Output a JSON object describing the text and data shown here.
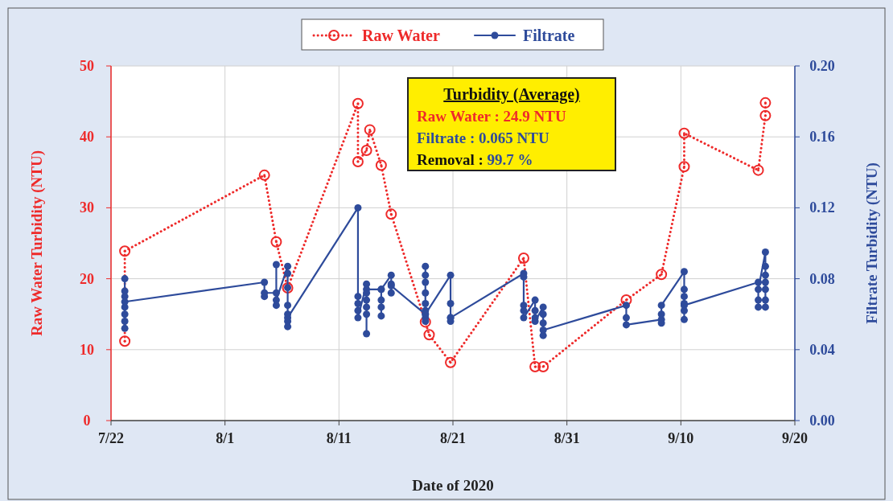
{
  "chart_data": {
    "type": "line",
    "xlabel": "Date of 2020",
    "ylabel": "Raw Water Turbidity (NTU)",
    "y2label": "Filtrate Turbidity (NTU)",
    "xlim": [
      "2020-07-22",
      "2020-09-20"
    ],
    "xticks": [
      {
        "value": "2020-07-22",
        "label": "7/22"
      },
      {
        "value": "2020-08-01",
        "label": "8/1"
      },
      {
        "value": "2020-08-11",
        "label": "8/11"
      },
      {
        "value": "2020-08-21",
        "label": "8/21"
      },
      {
        "value": "2020-08-31",
        "label": "8/31"
      },
      {
        "value": "2020-09-10",
        "label": "9/10"
      },
      {
        "value": "2020-09-20",
        "label": "9/20"
      }
    ],
    "ylim": [
      0,
      50
    ],
    "yticks": [
      0,
      10,
      20,
      30,
      40,
      50
    ],
    "y2lim": [
      0,
      0.2
    ],
    "y2ticks": [
      {
        "value": 0,
        "label": "0.00"
      },
      {
        "value": 0.04,
        "label": "0.04"
      },
      {
        "value": 0.08,
        "label": "0.08"
      },
      {
        "value": 0.12,
        "label": "0.12"
      },
      {
        "value": 0.16,
        "label": "0.16"
      },
      {
        "value": 0.2,
        "label": "0.20"
      }
    ],
    "grid": true,
    "legend": "top",
    "annotations": [
      "Turbidity (Average)",
      "Raw Water : 24.9 NTU",
      "Filtrate : 0.065 NTU",
      "Removal : 99.7 %"
    ],
    "series": [
      {
        "name": "Raw Water",
        "color": "#ee2a2a",
        "marker": "circle",
        "line_style": "dotted",
        "x": [
          "2020-07-23T05:00",
          "2020-07-23T05:00",
          "2020-08-04T11:00",
          "2020-08-05T12:00",
          "2020-08-06T12:00",
          "2020-08-12T16:00",
          "2020-08-12T16:00",
          "2020-08-13T10:00",
          "2020-08-13T17:00",
          "2020-08-14T17:00",
          "2020-08-15T14:00",
          "2020-08-18T14:00",
          "2020-08-18T22:00",
          "2020-08-20T19:00",
          "2020-08-27T05:00",
          "2020-08-28T05:00",
          "2020-08-28T22:00",
          "2020-09-05T05:00",
          "2020-09-08T07:00",
          "2020-09-10T07:00",
          "2020-09-10T07:00",
          "2020-09-16T19:00",
          "2020-09-17T10:00",
          "2020-09-17T10:00"
        ],
        "values": [
          11.2,
          23.9,
          34.6,
          25.2,
          18.7,
          44.7,
          36.5,
          38.1,
          41.0,
          36.0,
          29.1,
          13.9,
          12.1,
          8.2,
          22.9,
          7.6,
          7.6,
          17.0,
          20.6,
          35.8,
          40.5,
          35.3,
          43.0,
          44.8
        ]
      },
      {
        "name": "Filtrate",
        "color": "#2e4b9b",
        "marker": "circle",
        "line_style": "solid",
        "axis": "y2",
        "x": [
          "2020-07-23T05:00",
          "2020-07-23T05:00",
          "2020-07-23T05:00",
          "2020-07-23T05:00",
          "2020-07-23T05:00",
          "2020-07-23T05:00",
          "2020-07-23T05:00",
          "2020-07-23T05:00",
          "2020-08-04T11:00",
          "2020-08-04T11:00",
          "2020-08-04T11:00",
          "2020-08-05T12:00",
          "2020-08-05T12:00",
          "2020-08-05T12:00",
          "2020-08-05T12:00",
          "2020-08-06T12:00",
          "2020-08-06T12:00",
          "2020-08-06T12:00",
          "2020-08-06T12:00",
          "2020-08-06T12:00",
          "2020-08-06T12:00",
          "2020-08-06T12:00",
          "2020-08-06T12:00",
          "2020-08-12T16:00",
          "2020-08-12T16:00",
          "2020-08-12T16:00",
          "2020-08-12T16:00",
          "2020-08-12T16:00",
          "2020-08-13T10:00",
          "2020-08-13T10:00",
          "2020-08-13T10:00",
          "2020-08-13T10:00",
          "2020-08-13T10:00",
          "2020-08-13T10:00",
          "2020-08-13T10:00",
          "2020-08-14T17:00",
          "2020-08-14T17:00",
          "2020-08-14T17:00",
          "2020-08-14T17:00",
          "2020-08-14T17:00",
          "2020-08-15T14:00",
          "2020-08-15T14:00",
          "2020-08-15T14:00",
          "2020-08-15T14:00",
          "2020-08-18T14:00",
          "2020-08-18T14:00",
          "2020-08-18T14:00",
          "2020-08-18T14:00",
          "2020-08-18T14:00",
          "2020-08-18T14:00",
          "2020-08-18T14:00",
          "2020-08-18T14:00",
          "2020-08-18T14:00",
          "2020-08-18T14:00",
          "2020-08-20T19:00",
          "2020-08-20T19:00",
          "2020-08-20T19:00",
          "2020-08-20T19:00",
          "2020-08-20T19:00",
          "2020-08-27T05:00",
          "2020-08-27T05:00",
          "2020-08-27T05:00",
          "2020-08-27T05:00",
          "2020-08-27T05:00",
          "2020-08-28T05:00",
          "2020-08-28T05:00",
          "2020-08-28T05:00",
          "2020-08-28T05:00",
          "2020-08-28T22:00",
          "2020-08-28T22:00",
          "2020-08-28T22:00",
          "2020-08-28T22:00",
          "2020-08-28T22:00",
          "2020-09-05T05:00",
          "2020-09-05T05:00",
          "2020-09-05T05:00",
          "2020-09-08T07:00",
          "2020-09-08T07:00",
          "2020-09-08T07:00",
          "2020-09-08T07:00",
          "2020-09-10T07:00",
          "2020-09-10T07:00",
          "2020-09-10T07:00",
          "2020-09-10T07:00",
          "2020-09-10T07:00",
          "2020-09-10T07:00",
          "2020-09-10T07:00",
          "2020-09-16T19:00",
          "2020-09-16T19:00",
          "2020-09-16T19:00",
          "2020-09-16T19:00",
          "2020-09-17T10:00",
          "2020-09-17T10:00",
          "2020-09-17T10:00",
          "2020-09-17T10:00",
          "2020-09-17T10:00",
          "2020-09-17T10:00",
          "2020-09-17T10:00"
        ],
        "values": [
          0.08,
          0.073,
          0.07,
          0.064,
          0.06,
          0.056,
          0.052,
          0.067,
          0.078,
          0.07,
          0.072,
          0.072,
          0.088,
          0.065,
          0.068,
          0.087,
          0.083,
          0.075,
          0.065,
          0.06,
          0.056,
          0.053,
          0.058,
          0.12,
          0.07,
          0.066,
          0.062,
          0.058,
          0.077,
          0.072,
          0.068,
          0.064,
          0.06,
          0.049,
          0.074,
          0.074,
          0.068,
          0.064,
          0.059,
          0.074,
          0.082,
          0.077,
          0.072,
          0.076,
          0.06,
          0.087,
          0.082,
          0.078,
          0.072,
          0.066,
          0.062,
          0.058,
          0.056,
          0.06,
          0.082,
          0.066,
          0.058,
          0.056,
          0.058,
          0.083,
          0.081,
          0.065,
          0.062,
          0.058,
          0.068,
          0.062,
          0.058,
          0.056,
          0.064,
          0.06,
          0.055,
          0.048,
          0.051,
          0.065,
          0.058,
          0.054,
          0.057,
          0.055,
          0.06,
          0.065,
          0.084,
          0.074,
          0.07,
          0.066,
          0.062,
          0.057,
          0.065,
          0.078,
          0.068,
          0.064,
          0.074,
          0.095,
          0.087,
          0.082,
          0.078,
          0.074,
          0.068,
          0.064
        ]
      }
    ]
  }
}
